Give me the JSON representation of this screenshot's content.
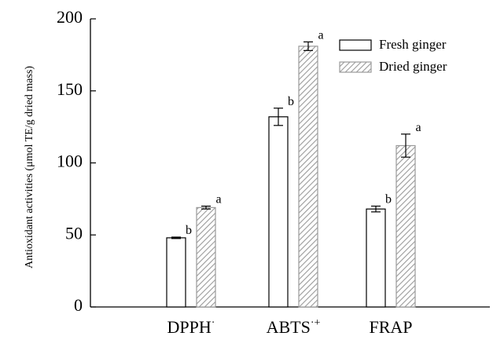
{
  "chart_data": {
    "type": "bar",
    "title": "",
    "xlabel": "",
    "ylabel": "Antioxidant activities (μmol TE/g dried mass)",
    "ylim": [
      0,
      200
    ],
    "yticks": [
      "0",
      "50",
      "100",
      "150",
      "200"
    ],
    "categories": [
      {
        "base": "DPPH",
        "sup": "·"
      },
      {
        "base": "ABTS",
        "sup": "·+"
      },
      {
        "base": "FRAP",
        "sup": ""
      }
    ],
    "series": [
      {
        "name": "Fresh ginger",
        "fill": "#ffffff",
        "values": [
          48,
          132,
          68
        ],
        "errors": [
          0.5,
          6,
          2
        ],
        "letters": [
          "b",
          "b",
          "b"
        ]
      },
      {
        "name": "Dried ginger",
        "fill": "hatched",
        "values": [
          69,
          181,
          112
        ],
        "errors": [
          1,
          3,
          8
        ],
        "letters": [
          "a",
          "a",
          "a"
        ]
      }
    ],
    "legend": "top-right",
    "grid": false
  }
}
